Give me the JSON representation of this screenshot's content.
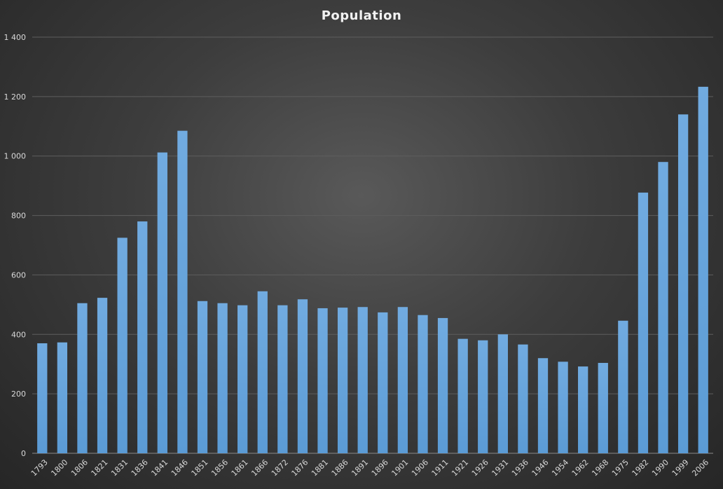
{
  "chart_data": {
    "type": "bar",
    "title": "Population",
    "xlabel": "",
    "ylabel": "",
    "ylim": [
      0,
      1400
    ],
    "yticks": [
      0,
      200,
      400,
      600,
      800,
      1000,
      1200,
      1400
    ],
    "ytick_labels": [
      "0",
      "200",
      "400",
      "600",
      "800",
      "1 000",
      "1 200",
      "1 400"
    ],
    "grid": true,
    "legend": "none",
    "bar_color": "#5b9bd5",
    "categories": [
      "1793",
      "1800",
      "1806",
      "1821",
      "1831",
      "1836",
      "1841",
      "1846",
      "1851",
      "1856",
      "1861",
      "1866",
      "1872",
      "1876",
      "1881",
      "1886",
      "1891",
      "1896",
      "1901",
      "1906",
      "1911",
      "1921",
      "1926",
      "1931",
      "1936",
      "1946",
      "1954",
      "1962",
      "1968",
      "1975",
      "1982",
      "1990",
      "1999",
      "2006"
    ],
    "values": [
      370,
      373,
      505,
      523,
      725,
      780,
      1012,
      1085,
      512,
      505,
      498,
      545,
      498,
      518,
      488,
      490,
      492,
      474,
      492,
      465,
      455,
      385,
      380,
      400,
      366,
      320,
      308,
      292,
      304,
      446,
      877,
      980,
      1140,
      1233
    ]
  }
}
